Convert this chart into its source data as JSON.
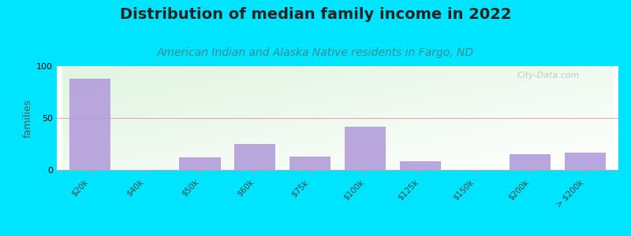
{
  "title": "Distribution of median family income in 2022",
  "subtitle": "American Indian and Alaska Native residents in Fargo, ND",
  "title_fontsize": 14,
  "subtitle_fontsize": 10,
  "ylabel": "families",
  "categories": [
    "$20k",
    "$40k",
    "$50k",
    "$60k",
    "$75k",
    "$100k",
    "$125k",
    "$150k",
    "$200k",
    "> $200k"
  ],
  "values": [
    88,
    0,
    12,
    25,
    13,
    42,
    8,
    0,
    15,
    17
  ],
  "bar_color": "#b39ddb",
  "bar_alpha": 0.9,
  "background_outer": "#00e5ff",
  "ylim": [
    0,
    100
  ],
  "yticks": [
    0,
    50,
    100
  ],
  "watermark": "City-Data.com",
  "bar_width": 0.75,
  "grid_color": "#e8aab0",
  "title_color": "#222222",
  "subtitle_color": "#3d8b8b",
  "ylabel_color": "#555555"
}
